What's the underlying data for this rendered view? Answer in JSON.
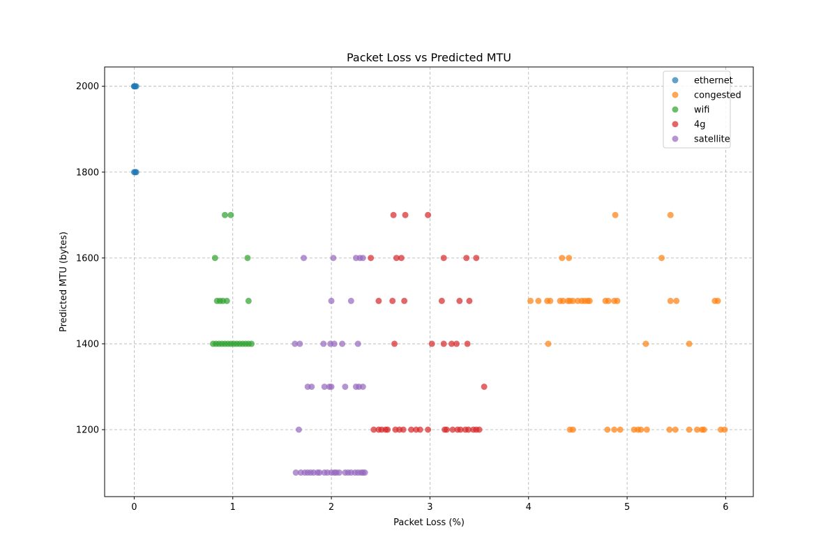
{
  "chart_data": {
    "type": "scatter",
    "title": "Packet Loss vs Predicted MTU",
    "xlabel": "Packet Loss (%)",
    "ylabel": "Predicted MTU (bytes)",
    "xlim": [
      -0.3,
      6.28
    ],
    "ylim": [
      1044,
      2045
    ],
    "xticks": [
      0,
      1,
      2,
      3,
      4,
      5,
      6
    ],
    "yticks": [
      1200,
      1400,
      1600,
      1800,
      2000
    ],
    "grid": true,
    "legend_position": "top-right",
    "series": [
      {
        "name": "ethernet",
        "color": "#1f77b4",
        "points": [
          [
            0.0,
            2000
          ],
          [
            0.0,
            2000
          ],
          [
            0.01,
            2000
          ],
          [
            0.02,
            2000
          ],
          [
            0.0,
            1800
          ],
          [
            0.01,
            1800
          ],
          [
            0.02,
            1800
          ]
        ]
      },
      {
        "name": "congested",
        "color": "#ff7f0e",
        "points": [
          [
            4.88,
            1700
          ],
          [
            5.44,
            1700
          ],
          [
            4.34,
            1600
          ],
          [
            4.41,
            1600
          ],
          [
            5.35,
            1600
          ],
          [
            4.02,
            1500
          ],
          [
            4.1,
            1500
          ],
          [
            4.19,
            1500
          ],
          [
            4.22,
            1500
          ],
          [
            4.32,
            1500
          ],
          [
            4.35,
            1500
          ],
          [
            4.4,
            1500
          ],
          [
            4.42,
            1500
          ],
          [
            4.45,
            1500
          ],
          [
            4.5,
            1500
          ],
          [
            4.54,
            1500
          ],
          [
            4.57,
            1500
          ],
          [
            4.6,
            1500
          ],
          [
            4.62,
            1500
          ],
          [
            4.78,
            1500
          ],
          [
            4.81,
            1500
          ],
          [
            4.87,
            1500
          ],
          [
            4.9,
            1500
          ],
          [
            5.44,
            1500
          ],
          [
            5.5,
            1500
          ],
          [
            5.89,
            1500
          ],
          [
            5.92,
            1500
          ],
          [
            4.2,
            1400
          ],
          [
            5.19,
            1400
          ],
          [
            5.63,
            1400
          ],
          [
            4.42,
            1200
          ],
          [
            4.45,
            1200
          ],
          [
            4.8,
            1200
          ],
          [
            4.87,
            1200
          ],
          [
            4.93,
            1200
          ],
          [
            5.07,
            1200
          ],
          [
            5.11,
            1200
          ],
          [
            5.14,
            1200
          ],
          [
            5.2,
            1200
          ],
          [
            5.43,
            1200
          ],
          [
            5.49,
            1200
          ],
          [
            5.63,
            1200
          ],
          [
            5.71,
            1200
          ],
          [
            5.76,
            1200
          ],
          [
            5.78,
            1200
          ],
          [
            5.95,
            1200
          ],
          [
            5.99,
            1200
          ]
        ]
      },
      {
        "name": "wifi",
        "color": "#2ca02c",
        "points": [
          [
            0.92,
            1700
          ],
          [
            0.98,
            1700
          ],
          [
            0.82,
            1600
          ],
          [
            1.15,
            1600
          ],
          [
            0.84,
            1500
          ],
          [
            0.87,
            1500
          ],
          [
            0.9,
            1500
          ],
          [
            0.94,
            1500
          ],
          [
            1.16,
            1500
          ],
          [
            0.8,
            1400
          ],
          [
            0.83,
            1400
          ],
          [
            0.86,
            1400
          ],
          [
            0.89,
            1400
          ],
          [
            0.92,
            1400
          ],
          [
            0.95,
            1400
          ],
          [
            0.98,
            1400
          ],
          [
            1.01,
            1400
          ],
          [
            1.04,
            1400
          ],
          [
            1.07,
            1400
          ],
          [
            1.1,
            1400
          ],
          [
            1.13,
            1400
          ],
          [
            1.16,
            1400
          ],
          [
            1.19,
            1400
          ]
        ]
      },
      {
        "name": "4g",
        "color": "#d62728",
        "points": [
          [
            2.63,
            1700
          ],
          [
            2.75,
            1700
          ],
          [
            2.98,
            1700
          ],
          [
            2.4,
            1600
          ],
          [
            2.66,
            1600
          ],
          [
            2.71,
            1600
          ],
          [
            3.14,
            1600
          ],
          [
            3.37,
            1600
          ],
          [
            3.47,
            1600
          ],
          [
            2.48,
            1500
          ],
          [
            2.62,
            1500
          ],
          [
            2.74,
            1500
          ],
          [
            3.12,
            1500
          ],
          [
            3.3,
            1500
          ],
          [
            3.4,
            1500
          ],
          [
            2.64,
            1400
          ],
          [
            3.02,
            1400
          ],
          [
            3.14,
            1400
          ],
          [
            3.22,
            1400
          ],
          [
            3.27,
            1400
          ],
          [
            3.38,
            1400
          ],
          [
            3.55,
            1300
          ],
          [
            2.43,
            1200
          ],
          [
            2.48,
            1200
          ],
          [
            2.51,
            1200
          ],
          [
            2.55,
            1200
          ],
          [
            2.57,
            1200
          ],
          [
            2.65,
            1200
          ],
          [
            2.69,
            1200
          ],
          [
            2.73,
            1200
          ],
          [
            2.81,
            1200
          ],
          [
            2.86,
            1200
          ],
          [
            2.9,
            1200
          ],
          [
            2.98,
            1200
          ],
          [
            3.15,
            1200
          ],
          [
            3.17,
            1200
          ],
          [
            3.23,
            1200
          ],
          [
            3.28,
            1200
          ],
          [
            3.31,
            1200
          ],
          [
            3.36,
            1200
          ],
          [
            3.39,
            1200
          ],
          [
            3.44,
            1200
          ],
          [
            3.47,
            1200
          ],
          [
            3.5,
            1200
          ]
        ]
      },
      {
        "name": "satellite",
        "color": "#9467bd",
        "points": [
          [
            1.72,
            1600
          ],
          [
            2.02,
            1600
          ],
          [
            2.25,
            1600
          ],
          [
            2.29,
            1600
          ],
          [
            2.32,
            1600
          ],
          [
            2.0,
            1500
          ],
          [
            2.2,
            1500
          ],
          [
            1.63,
            1400
          ],
          [
            1.68,
            1400
          ],
          [
            1.92,
            1400
          ],
          [
            1.99,
            1400
          ],
          [
            2.03,
            1400
          ],
          [
            2.11,
            1400
          ],
          [
            2.27,
            1400
          ],
          [
            1.76,
            1300
          ],
          [
            1.8,
            1300
          ],
          [
            1.93,
            1300
          ],
          [
            1.98,
            1300
          ],
          [
            2.0,
            1300
          ],
          [
            2.14,
            1300
          ],
          [
            2.25,
            1300
          ],
          [
            2.28,
            1300
          ],
          [
            2.32,
            1300
          ],
          [
            1.67,
            1200
          ],
          [
            1.64,
            1100
          ],
          [
            1.69,
            1100
          ],
          [
            1.73,
            1100
          ],
          [
            1.76,
            1100
          ],
          [
            1.79,
            1100
          ],
          [
            1.82,
            1100
          ],
          [
            1.86,
            1100
          ],
          [
            1.88,
            1100
          ],
          [
            1.93,
            1100
          ],
          [
            1.96,
            1100
          ],
          [
            2.0,
            1100
          ],
          [
            2.03,
            1100
          ],
          [
            2.05,
            1100
          ],
          [
            2.08,
            1100
          ],
          [
            2.14,
            1100
          ],
          [
            2.17,
            1100
          ],
          [
            2.2,
            1100
          ],
          [
            2.24,
            1100
          ],
          [
            2.27,
            1100
          ],
          [
            2.3,
            1100
          ],
          [
            2.32,
            1100
          ],
          [
            2.34,
            1100
          ]
        ]
      }
    ]
  }
}
